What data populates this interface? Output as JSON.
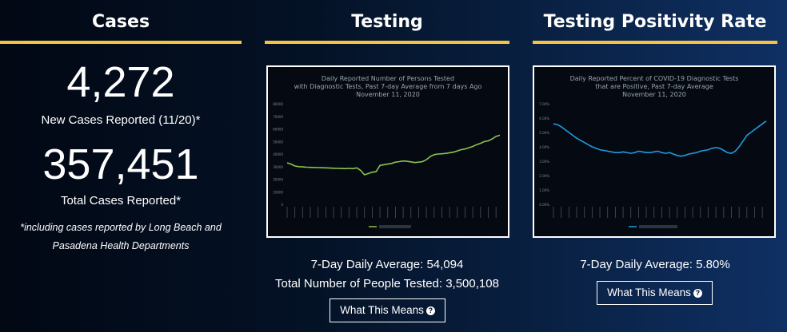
{
  "cases": {
    "heading": "Cases",
    "new_cases_value": "4,272",
    "new_cases_label": "New Cases Reported (11/20)*",
    "total_cases_value": "357,451",
    "total_cases_label": "Total Cases Reported*",
    "footnote_line1": "*including cases reported by Long Beach and",
    "footnote_line2": "Pasadena Health Departments"
  },
  "testing": {
    "heading": "Testing",
    "chart_title_line1": "Daily Reported Number of Persons Tested",
    "chart_title_line2": "with Diagnostic Tests, Past 7-day Average from 7 days Ago",
    "chart_title_line3": "November 11, 2020",
    "average_label": "7-Day Daily Average: 54,094",
    "total_label": "Total Number of People Tested: 3,500,108",
    "button_label": "What This Means"
  },
  "positivity": {
    "heading": "Testing Positivity Rate",
    "chart_title_line1": "Daily Reported Percent of COVID-19 Diagnostic Tests",
    "chart_title_line2": "that are Positive, Past 7-day Average",
    "chart_title_line3": "November 11, 2020",
    "average_label": "7-Day Daily Average: 5.80%",
    "button_label": "What This Means"
  },
  "colors": {
    "accent_rule": "#f5c242",
    "testing_line": "#8bc34a",
    "positivity_line": "#1e9be0"
  },
  "icons": {
    "help": "question-circle-icon"
  },
  "chart_data": [
    {
      "type": "line",
      "title": "Daily Reported Number of Persons Tested with Diagnostic Tests, Past 7-day Average from 7 days Ago",
      "ylim": [
        0,
        80000
      ],
      "yticks": [
        "0",
        "10000",
        "20000",
        "30000",
        "40000",
        "50000",
        "60000",
        "70000",
        "80000"
      ],
      "series": [
        {
          "values": [
            33000,
            32000,
            30500,
            30000,
            29800,
            29500,
            29400,
            29300,
            29200,
            29100,
            29000,
            28800,
            28700,
            28600,
            28500,
            28400,
            28600,
            28400,
            29000,
            27000,
            23500,
            24500,
            25500,
            26000,
            31000,
            31500,
            32000,
            32500,
            33500,
            34000,
            34500,
            34200,
            33800,
            33200,
            33500,
            34000,
            35500,
            38000,
            39500,
            40000,
            40200,
            40500,
            41000,
            41500,
            42500,
            43500,
            44000,
            45000,
            46000,
            47500,
            48500,
            50000,
            50500,
            52000,
            54000,
            55000
          ]
        }
      ]
    },
    {
      "type": "line",
      "title": "Daily Reported Percent of COVID-19 Diagnostic Tests that are Positive, Past 7-day Average",
      "ylim": [
        0,
        7
      ],
      "yticks": [
        "0.00%",
        "1.00%",
        "2.00%",
        "3.00%",
        "4.00%",
        "5.00%",
        "6.00%",
        "7.00%"
      ],
      "series": [
        {
          "values": [
            5.6,
            5.55,
            5.4,
            5.2,
            5.0,
            4.8,
            4.6,
            4.45,
            4.3,
            4.15,
            4.0,
            3.9,
            3.8,
            3.75,
            3.7,
            3.65,
            3.6,
            3.6,
            3.65,
            3.6,
            3.55,
            3.6,
            3.7,
            3.65,
            3.6,
            3.6,
            3.65,
            3.7,
            3.6,
            3.55,
            3.6,
            3.5,
            3.4,
            3.35,
            3.4,
            3.5,
            3.55,
            3.6,
            3.7,
            3.75,
            3.8,
            3.9,
            3.95,
            3.9,
            3.75,
            3.6,
            3.55,
            3.7,
            4.0,
            4.4,
            4.8,
            5.0,
            5.2,
            5.4,
            5.6,
            5.8
          ]
        }
      ]
    }
  ]
}
